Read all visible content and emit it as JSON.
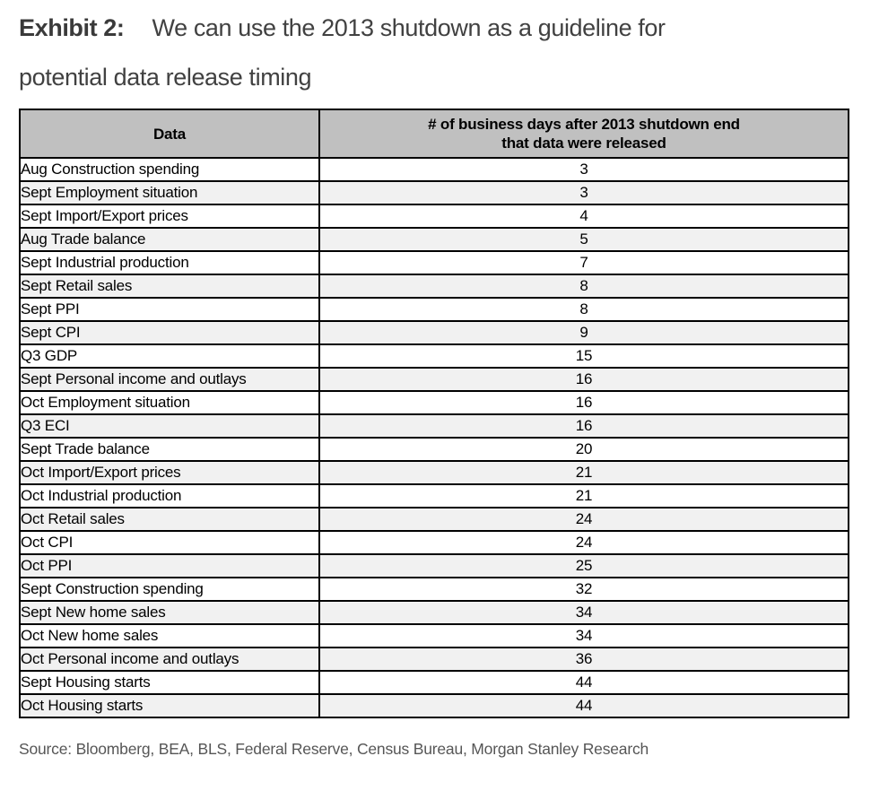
{
  "title": {
    "label": "Exhibit 2:",
    "line1": "We can use the 2013 shutdown as a guideline for",
    "line2": "potential data release timing"
  },
  "table": {
    "header": {
      "col1": "Data",
      "col2_line1": "# of business days after 2013 shutdown end",
      "col2_line2": "that data were released"
    },
    "rows": [
      {
        "label": "Aug Construction spending",
        "value": "3"
      },
      {
        "label": "Sept Employment situation",
        "value": "3"
      },
      {
        "label": "Sept Import/Export prices",
        "value": "4"
      },
      {
        "label": "Aug Trade balance",
        "value": "5"
      },
      {
        "label": "Sept Industrial production",
        "value": "7"
      },
      {
        "label": "Sept Retail sales",
        "value": "8"
      },
      {
        "label": "Sept PPI",
        "value": "8"
      },
      {
        "label": "Sept CPI",
        "value": "9"
      },
      {
        "label": "Q3 GDP",
        "value": "15"
      },
      {
        "label": "Sept Personal income and outlays",
        "value": "16"
      },
      {
        "label": "Oct Employment situation",
        "value": "16"
      },
      {
        "label": "Q3 ECI",
        "value": "16"
      },
      {
        "label": "Sept Trade balance",
        "value": "20"
      },
      {
        "label": "Oct Import/Export prices",
        "value": "21"
      },
      {
        "label": "Oct Industrial production",
        "value": "21"
      },
      {
        "label": "Oct Retail sales",
        "value": "24"
      },
      {
        "label": "Oct CPI",
        "value": "24"
      },
      {
        "label": "Oct PPI",
        "value": "25"
      },
      {
        "label": "Sept Construction spending",
        "value": "32"
      },
      {
        "label": "Sept New home sales",
        "value": "34"
      },
      {
        "label": "Oct New home sales",
        "value": "34"
      },
      {
        "label": "Oct Personal income and outlays",
        "value": "36"
      },
      {
        "label": "Sept Housing starts",
        "value": "44"
      },
      {
        "label": "Oct Housing starts",
        "value": "44"
      }
    ]
  },
  "source": "Source: Bloomberg, BEA, BLS, Federal Reserve, Census Bureau, Morgan Stanley Research",
  "colors": {
    "header_bg": "#c0c0c0",
    "alt_row_bg": "#f1f1f1",
    "row_bg": "#ffffff",
    "border": "#000000",
    "title_text": "#414141",
    "source_text": "#565656"
  },
  "chart_data": {
    "type": "table",
    "title": "Exhibit 2: We can use the 2013 shutdown as a guideline for potential data release timing",
    "columns": [
      "Data",
      "# of business days after 2013 shutdown end that data were released"
    ],
    "rows": [
      [
        "Aug Construction spending",
        3
      ],
      [
        "Sept Employment situation",
        3
      ],
      [
        "Sept Import/Export prices",
        4
      ],
      [
        "Aug Trade balance",
        5
      ],
      [
        "Sept Industrial production",
        7
      ],
      [
        "Sept Retail sales",
        8
      ],
      [
        "Sept PPI",
        8
      ],
      [
        "Sept CPI",
        9
      ],
      [
        "Q3 GDP",
        15
      ],
      [
        "Sept Personal income and outlays",
        16
      ],
      [
        "Oct Employment situation",
        16
      ],
      [
        "Q3 ECI",
        16
      ],
      [
        "Sept Trade balance",
        20
      ],
      [
        "Oct Import/Export prices",
        21
      ],
      [
        "Oct Industrial production",
        21
      ],
      [
        "Oct Retail sales",
        24
      ],
      [
        "Oct CPI",
        24
      ],
      [
        "Oct PPI",
        25
      ],
      [
        "Sept Construction spending",
        32
      ],
      [
        "Sept New home sales",
        34
      ],
      [
        "Oct New home sales",
        34
      ],
      [
        "Oct Personal income and outlays",
        36
      ],
      [
        "Sept Housing starts",
        44
      ],
      [
        "Oct Housing starts",
        44
      ]
    ]
  }
}
